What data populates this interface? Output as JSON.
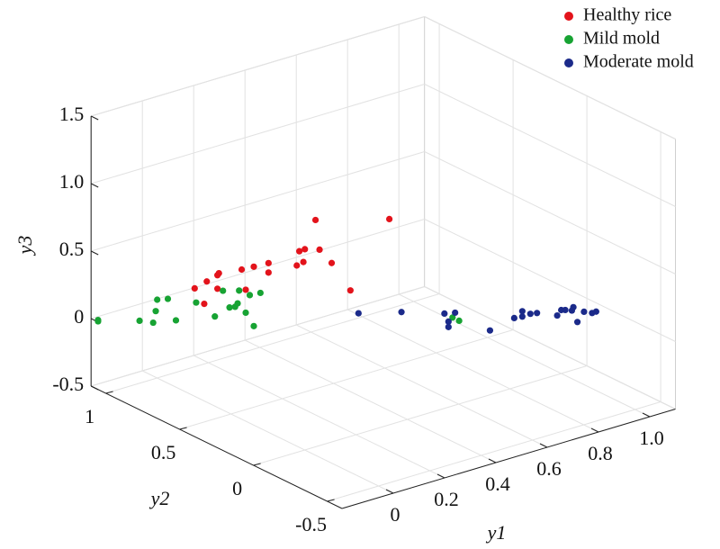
{
  "chart_data": {
    "type": "scatter3d",
    "xlabel": "y1",
    "ylabel": "y2",
    "zlabel": "y3",
    "xlim": [
      -0.2,
      1.1
    ],
    "ylim": [
      -0.6,
      1.1
    ],
    "zlim": [
      -0.5,
      1.5
    ],
    "xticks": [
      0,
      0.2,
      0.4,
      0.6,
      0.8,
      {
        "value": 1,
        "label": "1.0"
      }
    ],
    "yticks": [
      -0.5,
      0,
      0.5,
      1
    ],
    "zticks": [
      -0.5,
      0,
      0.5,
      {
        "value": 1,
        "label": "1.0"
      },
      1.5
    ],
    "grid": true,
    "legend": "upper right",
    "series": [
      {
        "name": "Healthy rice",
        "color": "#e3131b",
        "x": [
          0.06,
          0.09,
          0.12,
          0.12,
          0.08,
          0.12,
          0.18,
          0.21,
          0.25,
          0.25,
          0.19,
          0.32,
          0.33,
          0.34,
          0.34,
          0.38,
          0.37,
          0.56,
          0.41,
          0.46
        ],
        "y": [
          0.85,
          0.82,
          0.8,
          0.79,
          0.82,
          0.8,
          0.74,
          0.71,
          0.68,
          0.68,
          0.73,
          0.61,
          0.61,
          0.59,
          0.6,
          0.56,
          0.57,
          0.4,
          0.53,
          0.49
        ],
        "z": [
          0.21,
          0.26,
          0.3,
          0.32,
          0.1,
          0.2,
          0.34,
          0.36,
          0.38,
          0.31,
          0.19,
          0.36,
          0.46,
          0.48,
          0.38,
          0.47,
          0.69,
          0.68,
          0.37,
          0.16
        ]
      },
      {
        "name": "Mild mold",
        "color": "#17a333",
        "x": [
          -0.19,
          -0.19,
          -0.08,
          -0.05,
          -0.04,
          -0.04,
          -0.01,
          0.01,
          0.06,
          0.11,
          0.13,
          0.15,
          0.16,
          0.17,
          0.17,
          0.19,
          0.2,
          0.21,
          0.23,
          0.72,
          0.74
        ],
        "y": [
          1.07,
          1.07,
          0.98,
          0.94,
          0.93,
          0.94,
          0.91,
          0.89,
          0.84,
          0.8,
          0.78,
          0.77,
          0.75,
          0.75,
          0.74,
          0.73,
          0.72,
          0.71,
          0.7,
          0.25,
          0.24
        ],
        "z": [
          -0.01,
          0.0,
          -0.02,
          -0.03,
          0.14,
          0.05,
          0.14,
          -0.02,
          0.11,
          0.0,
          0.19,
          0.06,
          0.07,
          0.09,
          0.19,
          0.02,
          0.15,
          -0.08,
          0.16,
          -0.06,
          -0.09
        ]
      },
      {
        "name": "Moderate mold",
        "color": "#1b2a8a",
        "x": [
          0.48,
          0.59,
          0.7,
          0.71,
          0.71,
          0.73,
          0.82,
          0.88,
          0.9,
          0.9,
          0.92,
          0.94,
          0.99,
          1.0,
          1.01,
          1.03,
          1.03,
          1.04,
          1.06,
          1.08,
          1.09
        ],
        "y": [
          0.47,
          0.37,
          0.27,
          0.26,
          0.26,
          0.25,
          0.17,
          0.11,
          0.09,
          0.09,
          0.07,
          0.06,
          0.01,
          0.0,
          -0.01,
          -0.02,
          -0.03,
          -0.04,
          -0.05,
          -0.07,
          -0.08
        ],
        "z": [
          -0.01,
          -0.01,
          -0.03,
          -0.09,
          -0.13,
          -0.03,
          -0.17,
          -0.08,
          -0.03,
          -0.07,
          -0.05,
          -0.05,
          -0.07,
          -0.03,
          -0.03,
          -0.04,
          -0.01,
          -0.12,
          -0.05,
          -0.06,
          -0.05
        ]
      }
    ]
  }
}
